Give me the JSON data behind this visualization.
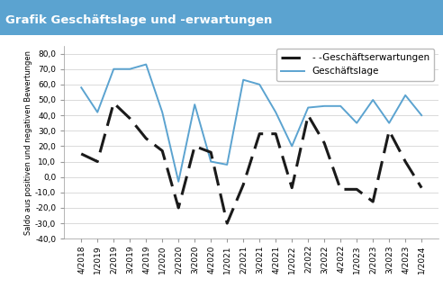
{
  "title": "Grafik Geschäftslage und -erwartungen",
  "title_bg_color": "#5ba3d0",
  "title_text_color": "#ffffff",
  "ylabel": "Saldo aus positiven und negativen Bewertungen",
  "ylim": [
    -40,
    85
  ],
  "yticks": [
    -40.0,
    -30.0,
    -20.0,
    -10.0,
    0.0,
    10.0,
    20.0,
    30.0,
    40.0,
    50.0,
    60.0,
    70.0,
    80.0
  ],
  "x_labels": [
    "4/2018",
    "1/2019",
    "2/2019",
    "3/2019",
    "4/2019",
    "1/2020",
    "2/2020",
    "3/2020",
    "4/2020",
    "1/2021",
    "2/2021",
    "3/2021",
    "4/2021",
    "1/2022",
    "2/2022",
    "3/2022",
    "4/2022",
    "1/2023",
    "2/2023",
    "3/2023",
    "4/2023",
    "1/2024"
  ],
  "geschaeftslage": [
    58,
    42,
    70,
    70,
    73,
    42,
    -3,
    47,
    10,
    8,
    63,
    60,
    42,
    20,
    45,
    46,
    46,
    35,
    50,
    35,
    53,
    40
  ],
  "geschaeftserwartungen": [
    15,
    10,
    48,
    38,
    25,
    17,
    -20,
    20,
    16,
    -30,
    -5,
    28,
    28,
    -7,
    40,
    22,
    -8,
    -8,
    -16,
    30,
    10,
    -7
  ],
  "lage_color": "#5ba3d0",
  "erwartungen_color": "#1a1a1a",
  "legend_lage": "Geschäftslage",
  "legend_erwartungen": "- -Geschäftserwartungen",
  "bg_color": "#ffffff",
  "plot_bg_color": "#ffffff",
  "title_fontsize": 9.5,
  "axis_fontsize": 6.5,
  "legend_fontsize": 7.5
}
